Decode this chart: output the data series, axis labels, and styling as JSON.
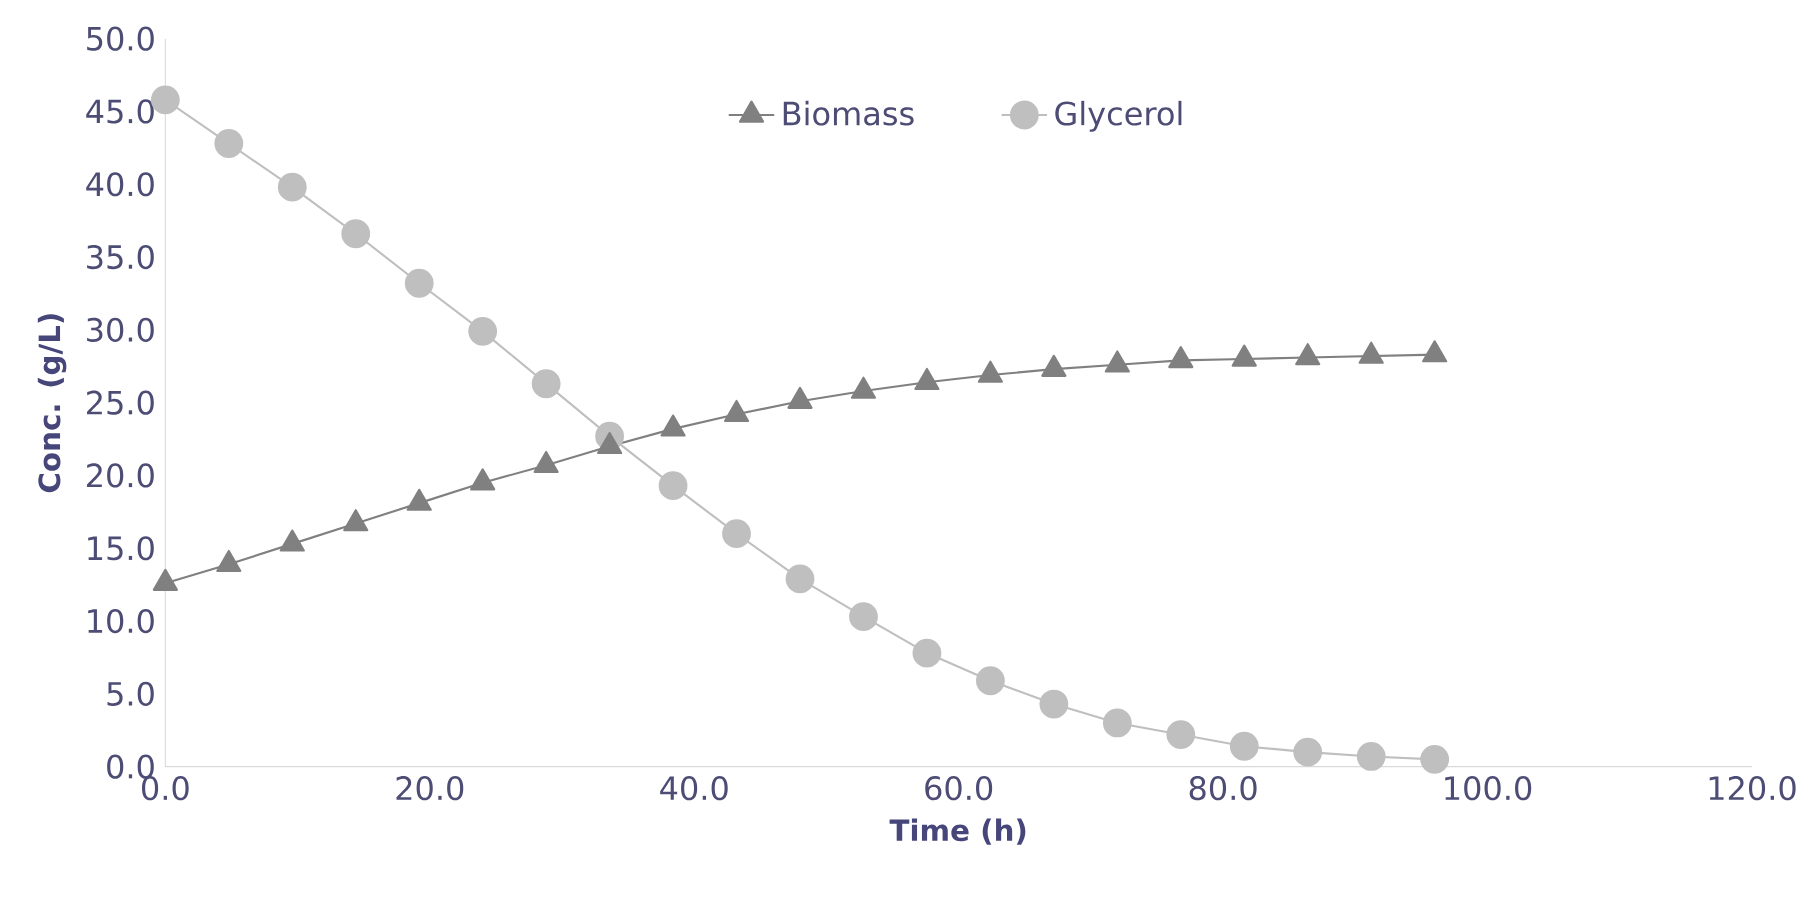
{
  "chart_data": {
    "type": "line",
    "xlabel": "Time (h)",
    "ylabel": "Conc. (g/L)",
    "x": [
      0,
      4.8,
      9.6,
      14.4,
      19.2,
      24,
      28.8,
      33.6,
      38.4,
      43.2,
      48,
      52.8,
      57.6,
      62.4,
      67.2,
      72,
      76.8,
      81.6,
      86.4,
      91.2,
      96
    ],
    "series": [
      {
        "name": "Biomass",
        "color": "#808080",
        "marker": "triangle",
        "values": [
          12.6,
          13.9,
          15.3,
          16.7,
          18.1,
          19.5,
          20.7,
          22.0,
          23.2,
          24.2,
          25.1,
          25.8,
          26.4,
          26.9,
          27.3,
          27.6,
          27.9,
          28.0,
          28.1,
          28.2,
          28.3
        ]
      },
      {
        "name": "Glycerol",
        "color": "#bfbfbf",
        "marker": "circle",
        "values": [
          45.8,
          42.8,
          39.8,
          36.6,
          33.2,
          29.9,
          26.3,
          22.7,
          19.3,
          16.0,
          12.9,
          10.3,
          7.8,
          5.9,
          4.3,
          3.0,
          2.2,
          1.4,
          1.0,
          0.7,
          0.5
        ]
      }
    ],
    "xlim": [
      0,
      120
    ],
    "xticks": [
      {
        "value": 0,
        "label": "0.0"
      },
      {
        "value": 20,
        "label": "20.0"
      },
      {
        "value": 40,
        "label": "40.0"
      },
      {
        "value": 60,
        "label": "60.0"
      },
      {
        "value": 80,
        "label": "80.0"
      },
      {
        "value": 100,
        "label": "100.0"
      },
      {
        "value": 120,
        "label": "120.0"
      }
    ],
    "ylim": [
      0,
      50
    ],
    "yticks": [
      {
        "value": 0,
        "label": "0.0"
      },
      {
        "value": 5,
        "label": "5.0"
      },
      {
        "value": 10,
        "label": "10.0"
      },
      {
        "value": 15,
        "label": "15.0"
      },
      {
        "value": 20,
        "label": "20.0"
      },
      {
        "value": 25,
        "label": "25.0"
      },
      {
        "value": 30,
        "label": "30.0"
      },
      {
        "value": 35,
        "label": "35.0"
      },
      {
        "value": 40,
        "label": "40.0"
      },
      {
        "value": 45,
        "label": "45.0"
      },
      {
        "value": 50,
        "label": "50.0"
      }
    ],
    "grid": false,
    "legend": "top",
    "line_style": "solid"
  }
}
